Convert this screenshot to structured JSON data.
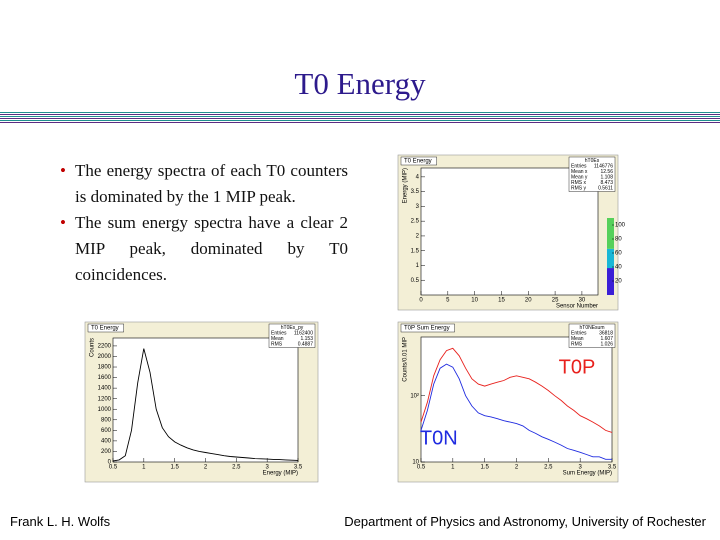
{
  "title": "T0 Energy",
  "bullets": [
    "The energy spectra of each T0 counters is dominated by the 1 MIP peak.",
    "The sum energy spectra have a clear 2 MIP peak, dominated by T0 coincidences."
  ],
  "footer": {
    "left": "Frank L. H. Wolfs",
    "right": "Department of Physics and Astronomy, University of Rochester"
  },
  "chart_data": [
    {
      "type": "heatmap",
      "title": "T0 Energy",
      "xlabel": "Sensor Number",
      "ylabel": "Energy (MIP)",
      "xlim": [
        0,
        33
      ],
      "xticks": [
        0,
        5,
        10,
        15,
        20,
        25,
        30
      ],
      "ylim": [
        0,
        4.3
      ],
      "yticks": [
        0.5,
        1,
        1.5,
        2,
        2.5,
        3,
        3.5,
        4
      ],
      "zlim": [
        0,
        110
      ],
      "zticks": [
        20,
        40,
        60,
        80,
        100
      ],
      "stats": {
        "name": "hT0Es",
        "rows": [
          [
            "Entries",
            1146776
          ],
          [
            "Mean x",
            12.56
          ],
          [
            "Mean y",
            1.108
          ],
          [
            "RMS x",
            8.473
          ],
          [
            "RMS y",
            0.5611
          ]
        ]
      }
    },
    {
      "type": "line",
      "title": "T0 Energy",
      "xlabel": "Energy (MIP)",
      "ylabel": "Counts",
      "xlim": [
        0.5,
        3.5
      ],
      "xticks": [
        0.5,
        1,
        1.5,
        2,
        2.5,
        3,
        3.5
      ],
      "ylim": [
        0,
        2350
      ],
      "yticks": [
        0,
        200,
        400,
        600,
        800,
        1000,
        1200,
        1400,
        1600,
        1800,
        2000,
        2200
      ],
      "stats": {
        "name": "hT0Es_py",
        "rows": [
          [
            "Entries",
            1162400
          ],
          [
            "Mean",
            1.153
          ],
          [
            "RMS",
            0.4887
          ]
        ]
      },
      "x": [
        0.5,
        0.6,
        0.7,
        0.8,
        0.9,
        1.0,
        1.1,
        1.2,
        1.3,
        1.4,
        1.5,
        1.6,
        1.7,
        1.8,
        1.9,
        2.0,
        2.1,
        2.2,
        2.3,
        2.4,
        2.5,
        2.6,
        2.7,
        2.8,
        2.9,
        3.0,
        3.1,
        3.2,
        3.3,
        3.4,
        3.5
      ],
      "series": [
        {
          "color": "#000000",
          "values": [
            20,
            40,
            120,
            600,
            1500,
            2150,
            1700,
            1000,
            650,
            480,
            380,
            320,
            270,
            230,
            200,
            180,
            160,
            140,
            120,
            105,
            95,
            85,
            75,
            65,
            60,
            55,
            50,
            45,
            40,
            35,
            30
          ]
        }
      ]
    },
    {
      "type": "line",
      "title": "T0P Sum Energy",
      "xlabel": "Sum Energy (MIP)",
      "ylabel": "Counts/0.01 MIP",
      "log_y": true,
      "xlim": [
        0.5,
        3.5
      ],
      "xticks": [
        0.5,
        1,
        1.5,
        2,
        2.5,
        3,
        3.5
      ],
      "ylim": [
        10,
        770
      ],
      "yticks": [
        10,
        {
          "value": 100,
          "label": "10²"
        }
      ],
      "stats": {
        "name": "hT0NEsum",
        "rows": [
          [
            "Entries",
            36818
          ],
          [
            "Mean",
            1.607
          ],
          [
            "RMS",
            1.026
          ]
        ]
      },
      "x": [
        0.5,
        0.6,
        0.7,
        0.8,
        0.9,
        1.0,
        1.1,
        1.2,
        1.3,
        1.4,
        1.5,
        1.6,
        1.7,
        1.8,
        1.9,
        2.0,
        2.1,
        2.2,
        2.3,
        2.4,
        2.5,
        2.6,
        2.7,
        2.8,
        2.9,
        3.0,
        3.1,
        3.2,
        3.3,
        3.4,
        3.5
      ],
      "series": [
        {
          "name": "T0P",
          "color": "#e8211d",
          "values": [
            40,
            80,
            200,
            350,
            480,
            520,
            400,
            260,
            180,
            150,
            140,
            150,
            160,
            170,
            190,
            200,
            190,
            180,
            160,
            140,
            120,
            100,
            85,
            70,
            60,
            50,
            45,
            40,
            35,
            30,
            28
          ]
        },
        {
          "name": "T0N",
          "color": "#1f2be0",
          "values": [
            30,
            60,
            150,
            260,
            300,
            270,
            180,
            100,
            70,
            55,
            50,
            48,
            45,
            42,
            40,
            38,
            35,
            30,
            27,
            24,
            22,
            20,
            18,
            16,
            15,
            14,
            13,
            12,
            12,
            11,
            11
          ]
        }
      ]
    }
  ]
}
